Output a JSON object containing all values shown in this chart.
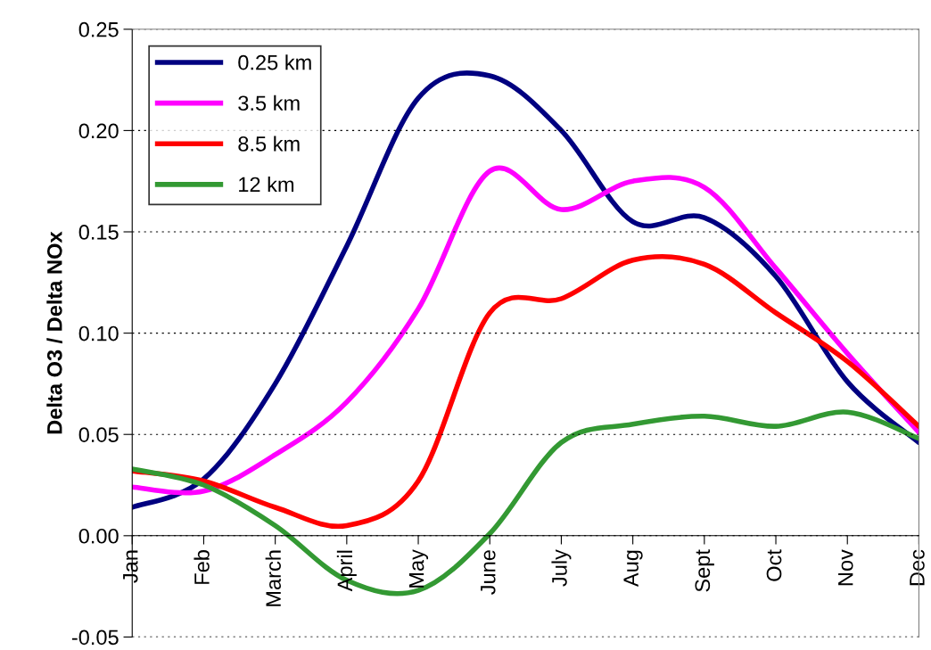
{
  "chart_data": {
    "type": "line",
    "ylabel": "Delta O3 / Delta NOx",
    "categories": [
      "Jan",
      "Feb",
      "March",
      "April",
      "May",
      "June",
      "July",
      "Aug",
      "Sept",
      "Oct",
      "Nov",
      "Dec"
    ],
    "series": [
      {
        "name": "0.25 km",
        "color": "#000080",
        "values": [
          0.014,
          0.028,
          0.075,
          0.143,
          0.216,
          0.227,
          0.2,
          0.155,
          0.157,
          0.128,
          0.076,
          0.046
        ]
      },
      {
        "name": "3.5 km",
        "color": "#ff00ff",
        "values": [
          0.024,
          0.022,
          0.04,
          0.066,
          0.112,
          0.18,
          0.161,
          0.175,
          0.172,
          0.132,
          0.09,
          0.051
        ]
      },
      {
        "name": "8.5 km",
        "color": "#ff0000",
        "values": [
          0.032,
          0.027,
          0.014,
          0.005,
          0.027,
          0.11,
          0.117,
          0.136,
          0.134,
          0.11,
          0.086,
          0.054
        ]
      },
      {
        "name": "12 km",
        "color": "#339933",
        "values": [
          0.033,
          0.025,
          0.005,
          -0.022,
          -0.027,
          0.001,
          0.046,
          0.055,
          0.059,
          0.054,
          0.061,
          0.048
        ]
      }
    ],
    "ylim": [
      -0.05,
      0.25
    ],
    "yticks": [
      {
        "value": -0.05,
        "label": "-0.05"
      },
      {
        "value": 0,
        "label": "0.00"
      },
      {
        "value": 0.05,
        "label": "0.05"
      },
      {
        "value": 0.1,
        "label": "0.10"
      },
      {
        "value": 0.15,
        "label": "0.15"
      },
      {
        "value": 0.2,
        "label": "0.20"
      },
      {
        "value": 0.25,
        "label": "0.25"
      }
    ],
    "grid": "y",
    "legend": "top left",
    "marker": "none",
    "line_style": "solid"
  }
}
